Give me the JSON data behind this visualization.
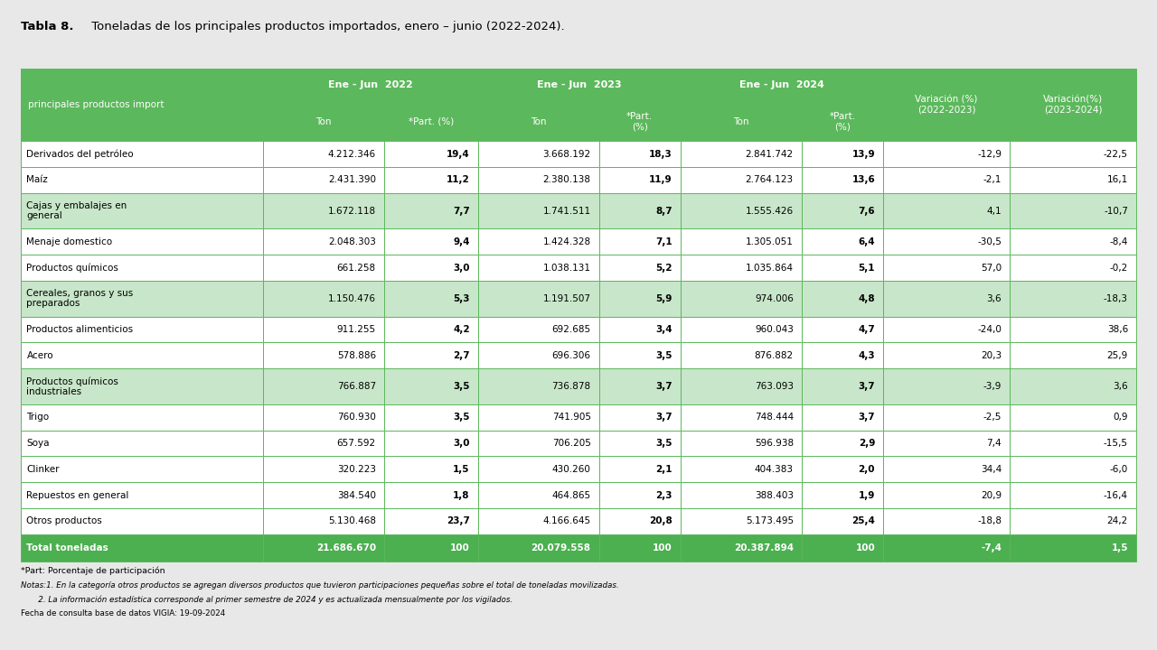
{
  "title_bold": "Tabla 8.",
  "title_rest": " Toneladas de los principales productos importados, enero – junio (2022-2024).",
  "rows": [
    [
      "Derivados del petróleo",
      "4.212.346",
      "19,4",
      "3.668.192",
      "18,3",
      "2.841.742",
      "13,9",
      "-12,9",
      "-22,5"
    ],
    [
      "Maíz",
      "2.431.390",
      "11,2",
      "2.380.138",
      "11,9",
      "2.764.123",
      "13,6",
      "-2,1",
      "16,1"
    ],
    [
      "Cajas y embalajes en\ngeneral",
      "1.672.118",
      "7,7",
      "1.741.511",
      "8,7",
      "1.555.426",
      "7,6",
      "4,1",
      "-10,7"
    ],
    [
      "Menaje domestico",
      "2.048.303",
      "9,4",
      "1.424.328",
      "7,1",
      "1.305.051",
      "6,4",
      "-30,5",
      "-8,4"
    ],
    [
      "Productos químicos",
      "661.258",
      "3,0",
      "1.038.131",
      "5,2",
      "1.035.864",
      "5,1",
      "57,0",
      "-0,2"
    ],
    [
      "Cereales, granos y sus\npreparados",
      "1.150.476",
      "5,3",
      "1.191.507",
      "5,9",
      "974.006",
      "4,8",
      "3,6",
      "-18,3"
    ],
    [
      "Productos alimenticios",
      "911.255",
      "4,2",
      "692.685",
      "3,4",
      "960.043",
      "4,7",
      "-24,0",
      "38,6"
    ],
    [
      "Acero",
      "578.886",
      "2,7",
      "696.306",
      "3,5",
      "876.882",
      "4,3",
      "20,3",
      "25,9"
    ],
    [
      "Productos químicos\nindustriales",
      "766.887",
      "3,5",
      "736.878",
      "3,7",
      "763.093",
      "3,7",
      "-3,9",
      "3,6"
    ],
    [
      "Trigo",
      "760.930",
      "3,5",
      "741.905",
      "3,7",
      "748.444",
      "3,7",
      "-2,5",
      "0,9"
    ],
    [
      "Soya",
      "657.592",
      "3,0",
      "706.205",
      "3,5",
      "596.938",
      "2,9",
      "7,4",
      "-15,5"
    ],
    [
      "Clinker",
      "320.223",
      "1,5",
      "430.260",
      "2,1",
      "404.383",
      "2,0",
      "34,4",
      "-6,0"
    ],
    [
      "Repuestos en general",
      "384.540",
      "1,8",
      "464.865",
      "2,3",
      "388.403",
      "1,9",
      "20,9",
      "-16,4"
    ],
    [
      "Otros productos",
      "5.130.468",
      "23,7",
      "4.166.645",
      "20,8",
      "5.173.495",
      "25,4",
      "-18,8",
      "24,2"
    ],
    [
      "Total toneladas",
      "21.686.670",
      "100",
      "20.079.558",
      "100",
      "20.387.894",
      "100",
      "-7,4",
      "1,5"
    ]
  ],
  "footer_lines": [
    "*Part: Porcentaje de participación",
    "Notas:1. En la categoría otros productos se agregan diversos productos que tuvieron participaciones pequeñas sobre el total de toneladas movilizadas.",
    "       2. La información estadística corresponde al primer semestre de 2024 y es actualizada mensualmente por los vigilados.",
    "Fecha de consulta base de datos VIGIA: 19-09-2024"
  ],
  "green_header_bg": "#5cb85c",
  "border_color": "#5cb85c",
  "background": "#e8e8e8",
  "white_row": "#ffffff",
  "green_row": "#c8e6c9",
  "total_bg": "#4caf50"
}
